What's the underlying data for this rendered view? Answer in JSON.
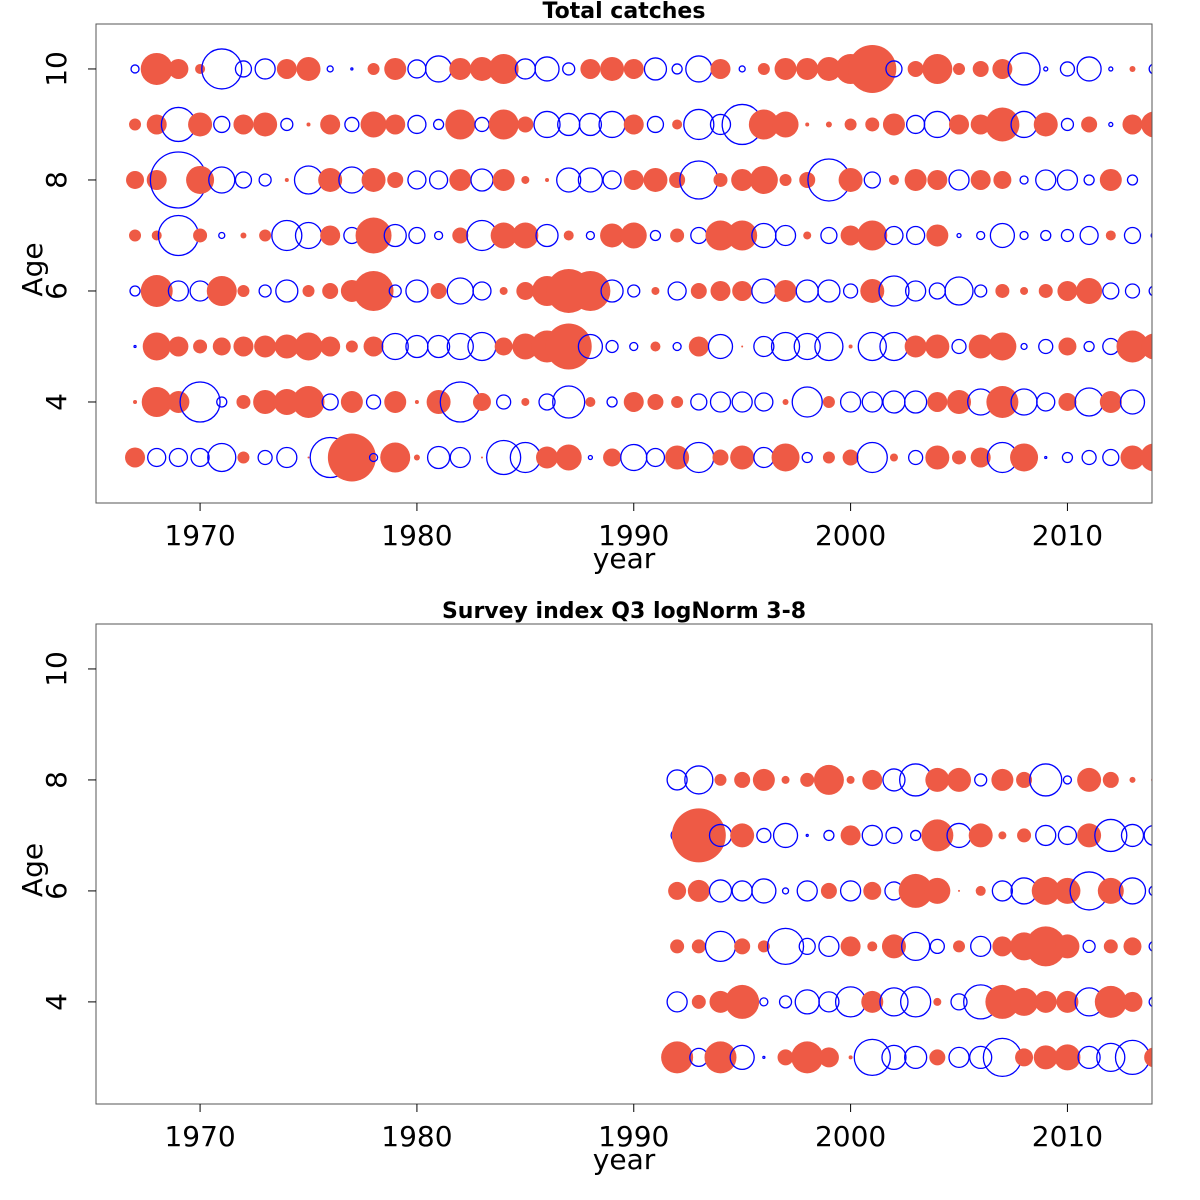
{
  "chart_data": [
    {
      "type": "bubble",
      "title": "Total catches",
      "xlabel": "year",
      "ylabel": "Age",
      "xlim": [
        1965.2,
        2013.9
      ],
      "ylim": [
        2.18,
        10.81
      ],
      "xticks": [
        1970,
        1980,
        1990,
        2000,
        2010
      ],
      "yticks": [
        4,
        6,
        8,
        10
      ],
      "positive_color": "#EE5A45",
      "negative_color": "#0000FF",
      "x": [
        1967,
        1968,
        1969,
        1970,
        1971,
        1972,
        1973,
        1974,
        1975,
        1976,
        1977,
        1978,
        1979,
        1980,
        1981,
        1982,
        1983,
        1984,
        1985,
        1986,
        1987,
        1988,
        1989,
        1990,
        1991,
        1992,
        1993,
        1994,
        1995,
        1996,
        1997,
        1998,
        1999,
        2000,
        2001,
        2002,
        2003,
        2004,
        2005,
        2006,
        2007,
        2008,
        2009,
        2010,
        2011,
        2012,
        2013,
        2014
      ],
      "ages": [
        3,
        4,
        5,
        6,
        7,
        8,
        9,
        10
      ],
      "residuals": [
        [
          1.0,
          -0.9,
          -0.9,
          -0.9,
          -1.4,
          0.6,
          -0.7,
          -1.0,
          0.1,
          -2.0,
          2.4,
          -0.4,
          1.5,
          0.3,
          -1.1,
          -1.0,
          0.1,
          -1.7,
          -1.5,
          1.1,
          1.3,
          -0.2,
          0.9,
          -1.3,
          -0.9,
          1.2,
          -1.5,
          0.8,
          1.2,
          -1.0,
          1.4,
          -0.5,
          0.6,
          0.8,
          -1.5,
          0.4,
          -0.7,
          1.2,
          0.7,
          1.0,
          -1.5,
          1.4,
          -0.1,
          -0.5,
          -0.7,
          -0.8,
          1.2,
          1.4
        ],
        [
          0.2,
          1.5,
          1.1,
          -2.0,
          -0.5,
          0.7,
          1.2,
          1.3,
          1.6,
          -0.8,
          1.1,
          -0.7,
          1.1,
          0.2,
          1.2,
          -2.0,
          0.9,
          -0.7,
          0.4,
          -0.8,
          -1.6,
          0.5,
          -0.5,
          1.0,
          0.8,
          0.6,
          -0.8,
          -1.0,
          -1.0,
          -0.9,
          0.3,
          -1.5,
          0.6,
          -1.0,
          -1.0,
          -1.1,
          -1.1,
          1.0,
          1.2,
          -1.3,
          1.6,
          -1.3,
          -0.9,
          0.9,
          -1.4,
          1.1,
          -1.2,
          0.2
        ],
        [
          -0.1,
          1.4,
          1.0,
          0.7,
          0.9,
          1.0,
          1.1,
          1.2,
          1.4,
          1.0,
          0.6,
          1.0,
          -1.3,
          -1.1,
          -1.1,
          -1.3,
          -1.4,
          0.9,
          1.3,
          1.6,
          2.3,
          -1.2,
          -0.6,
          -0.4,
          0.5,
          -0.4,
          1.0,
          -1.2,
          0.1,
          -1.0,
          -1.4,
          -1.3,
          -1.4,
          0.2,
          -1.4,
          -1.4,
          1.1,
          1.2,
          -0.7,
          1.2,
          1.4,
          -0.3,
          -0.7,
          0.9,
          -0.5,
          -0.8,
          1.6,
          1.3
        ],
        [
          -0.5,
          1.6,
          -1.0,
          -1.0,
          1.5,
          0.6,
          -0.6,
          -1.1,
          0.6,
          0.8,
          1.1,
          2.0,
          -0.6,
          -1.1,
          0.8,
          -1.3,
          -0.9,
          0.4,
          0.9,
          1.5,
          2.2,
          2.0,
          -1.1,
          -0.6,
          0.4,
          -0.9,
          0.8,
          1.0,
          1.0,
          -1.2,
          1.1,
          -1.1,
          -1.1,
          -0.7,
          1.2,
          -1.5,
          -1.0,
          -0.8,
          -1.4,
          -0.6,
          0.7,
          0.4,
          0.7,
          1.0,
          1.3,
          -0.8,
          -0.7,
          -0.5
        ],
        [
          0.6,
          0.5,
          -2.0,
          0.7,
          -0.3,
          0.3,
          0.6,
          -1.5,
          -1.3,
          1.0,
          -0.8,
          1.8,
          -1.1,
          -0.8,
          -0.4,
          0.8,
          -1.5,
          1.3,
          1.3,
          -1.1,
          0.5,
          -0.4,
          1.2,
          1.3,
          -0.5,
          0.7,
          -0.8,
          1.5,
          1.5,
          -1.2,
          -1.0,
          0.4,
          -0.8,
          1.0,
          1.5,
          -0.9,
          -0.9,
          1.1,
          -0.2,
          -0.4,
          -1.2,
          -0.4,
          -0.5,
          -0.6,
          -0.9,
          0.5,
          -0.8,
          -0.3
        ],
        [
          0.9,
          1.0,
          -2.8,
          1.4,
          -1.3,
          -0.8,
          -0.6,
          0.2,
          -1.4,
          1.2,
          -1.3,
          1.2,
          0.8,
          -0.9,
          -0.9,
          1.1,
          -1.1,
          1.1,
          0.4,
          0.2,
          -1.2,
          -1.2,
          -0.9,
          1.0,
          1.2,
          0.8,
          -1.9,
          0.7,
          1.1,
          1.4,
          0.6,
          0.8,
          -2.1,
          1.2,
          -0.8,
          0.5,
          1.1,
          1.0,
          -1.0,
          1.0,
          0.9,
          -0.4,
          -1.0,
          -1.0,
          -0.5,
          1.1,
          -0.5,
          0
        ],
        [
          0.6,
          1.0,
          -1.7,
          1.2,
          -0.8,
          1.0,
          1.2,
          -0.6,
          0.2,
          1.0,
          -0.7,
          1.3,
          1.0,
          -0.9,
          -0.5,
          1.5,
          -0.7,
          1.5,
          0.8,
          -1.3,
          -1.1,
          -1.1,
          -1.3,
          1.0,
          -0.8,
          0.5,
          -1.5,
          -1.0,
          -2.0,
          1.5,
          1.3,
          0.2,
          0.3,
          0.6,
          0.7,
          1.1,
          -0.9,
          -1.3,
          1.0,
          1.0,
          1.7,
          -1.3,
          1.2,
          -0.6,
          0.8,
          -0.2,
          1.0,
          1.3
        ],
        [
          -0.4,
          1.6,
          1.0,
          0.5,
          -2.0,
          -0.8,
          -1.0,
          1.0,
          1.2,
          -0.3,
          -0.1,
          0.6,
          1.1,
          -0.9,
          -1.3,
          1.1,
          1.2,
          1.5,
          -1.0,
          -1.2,
          -0.6,
          1.0,
          1.2,
          1.0,
          -1.1,
          -0.5,
          -1.3,
          1.0,
          -0.3,
          0.6,
          1.1,
          1.1,
          1.2,
          1.5,
          2.4,
          -0.8,
          0.8,
          1.5,
          0.6,
          0.8,
          1.0,
          -1.6,
          -0.2,
          -0.7,
          -1.2,
          -0.2,
          0.3,
          -0.5
        ]
      ]
    },
    {
      "type": "bubble",
      "title": "Survey index Q3 logNorm 3-8",
      "xlabel": "year",
      "ylabel": "Age",
      "xlim": [
        1965.2,
        2013.9
      ],
      "ylim": [
        2.16,
        10.81
      ],
      "xticks": [
        1970,
        1980,
        1990,
        2000,
        2010
      ],
      "yticks": [
        4,
        6,
        8,
        10
      ],
      "positive_color": "#EE5A45",
      "negative_color": "#0000FF",
      "x": [
        1992,
        1993,
        1994,
        1995,
        1996,
        1997,
        1998,
        1999,
        2000,
        2001,
        2002,
        2003,
        2004,
        2005,
        2006,
        2007,
        2008,
        2009,
        2010,
        2011,
        2012,
        2013,
        2014
      ],
      "ages": [
        3,
        4,
        5,
        6,
        7,
        8
      ],
      "residuals": [
        [
          1.6,
          -0.9,
          1.6,
          -1.2,
          -0.1,
          0.8,
          1.6,
          1.0,
          0.2,
          -1.8,
          -1.2,
          -1.1,
          0.8,
          -1.0,
          -1.1,
          -1.9,
          0.9,
          1.2,
          1.3,
          -1.1,
          -1.4,
          -1.7,
          1.0
        ],
        [
          -1.0,
          0.7,
          1.1,
          1.7,
          -0.4,
          -0.6,
          -1.2,
          -1.0,
          -1.5,
          1.1,
          -1.4,
          -1.5,
          0.4,
          -0.8,
          -1.7,
          1.7,
          1.4,
          1.1,
          1.1,
          -1.4,
          1.6,
          1.0,
          -0.5
        ],
        [
          0.7,
          0.7,
          -1.5,
          0.8,
          0.6,
          -1.8,
          -0.8,
          -1.0,
          1.0,
          0.5,
          1.2,
          -1.4,
          -0.7,
          0.6,
          -1.0,
          1.0,
          1.4,
          2.0,
          1.2,
          -0.6,
          0.7,
          0.9,
          -0.5
        ],
        [
          0.9,
          1.1,
          -1.1,
          -1.0,
          -1.2,
          -0.3,
          -1.0,
          0.8,
          -1.0,
          0.9,
          -0.9,
          1.7,
          1.3,
          0.1,
          0.5,
          -1.0,
          -1.3,
          1.4,
          1.3,
          -1.9,
          1.3,
          -1.3,
          -0.5
        ],
        [
          -0.6,
          2.7,
          -1.1,
          1.2,
          -0.7,
          -1.2,
          -0.1,
          -0.5,
          1.0,
          -1.0,
          -0.8,
          -0.5,
          1.6,
          -1.2,
          1.2,
          0.4,
          0.7,
          -1.0,
          -0.9,
          1.2,
          -1.6,
          -1.1,
          -1.0
        ],
        [
          -1.0,
          -1.4,
          0.6,
          0.8,
          1.1,
          0.4,
          0.7,
          1.5,
          0.4,
          1.0,
          -1.1,
          -1.6,
          1.2,
          1.2,
          -0.6,
          1.1,
          0.8,
          -1.6,
          -0.4,
          1.2,
          0.8,
          0.3,
          0.3
        ]
      ]
    }
  ]
}
